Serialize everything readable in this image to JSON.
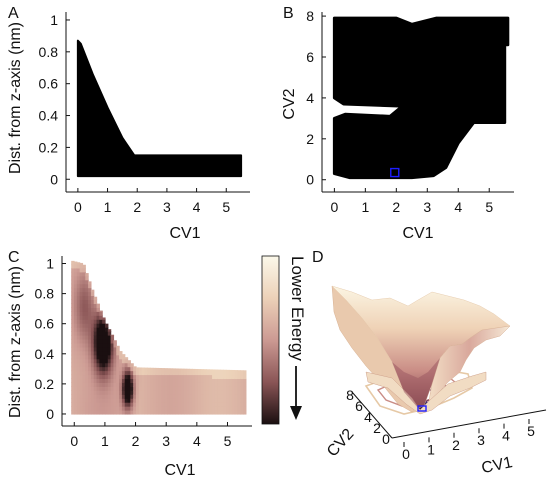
{
  "colors": {
    "scatter": "#000000",
    "marker": "#1d1dff",
    "energy_low": "#1a0f10",
    "energy_mid": "#b97a78",
    "energy_high": "#fbf8ea"
  },
  "chart_data": [
    {
      "panel": "A",
      "type": "scatter",
      "xlabel": "CV1",
      "ylabel": "Dist. from z-axis (nm)",
      "xlim": [
        -0.4,
        5.8
      ],
      "ylim": [
        -0.08,
        1.05
      ],
      "xticks": [
        "0",
        "1",
        "2",
        "3",
        "4",
        "5"
      ],
      "yticks": [
        "0",
        "0.2",
        "0.4",
        "0.6",
        "0.8",
        "1"
      ],
      "region": {
        "upper_envelope": [
          [
            0.0,
            0.87
          ],
          [
            0.1,
            0.85
          ],
          [
            0.5,
            0.66
          ],
          [
            1.0,
            0.45
          ],
          [
            1.5,
            0.26
          ],
          [
            1.9,
            0.15
          ],
          [
            5.5,
            0.15
          ]
        ],
        "lower_envelope": [
          [
            0.0,
            0.02
          ],
          [
            5.5,
            0.02
          ]
        ]
      }
    },
    {
      "panel": "B",
      "type": "scatter",
      "xlabel": "CV1",
      "ylabel": "CV2",
      "xlim": [
        -0.4,
        5.8
      ],
      "ylim": [
        -0.6,
        8.2
      ],
      "xticks": [
        "0",
        "1",
        "2",
        "3",
        "4",
        "5"
      ],
      "yticks": [
        "0",
        "2",
        "4",
        "6",
        "8"
      ],
      "region": {
        "outline": [
          [
            0.0,
            7.9
          ],
          [
            2.0,
            7.9
          ],
          [
            2.5,
            7.6
          ],
          [
            3.3,
            7.9
          ],
          [
            5.6,
            7.9
          ],
          [
            5.6,
            6.6
          ],
          [
            5.5,
            6.6
          ],
          [
            5.5,
            2.8
          ],
          [
            4.5,
            2.8
          ],
          [
            4.0,
            1.8
          ],
          [
            3.6,
            0.6
          ],
          [
            3.2,
            0.2
          ],
          [
            2.5,
            0.1
          ],
          [
            0.5,
            0.1
          ],
          [
            0.0,
            0.3
          ],
          [
            0.0,
            3.0
          ],
          [
            0.35,
            3.2
          ],
          [
            1.8,
            3.1
          ],
          [
            2.2,
            3.6
          ],
          [
            0.3,
            3.7
          ],
          [
            0.0,
            4.0
          ]
        ]
      },
      "marker": {
        "x": 1.95,
        "y": 0.35,
        "shape": "square"
      }
    },
    {
      "panel": "C",
      "type": "heatmap",
      "xlabel": "CV1",
      "ylabel": "Dist. from z-axis (nm)",
      "xlim": [
        -0.4,
        5.8
      ],
      "ylim": [
        -0.08,
        1.05
      ],
      "xticks": [
        "0",
        "1",
        "2",
        "3",
        "4",
        "5"
      ],
      "yticks": [
        "0",
        "0.2",
        "0.4",
        "0.6",
        "0.8",
        "1"
      ],
      "region": {
        "upper_envelope": [
          [
            -0.1,
            1.02
          ],
          [
            0.3,
            1.0
          ],
          [
            0.6,
            0.82
          ],
          [
            1.0,
            0.62
          ],
          [
            1.5,
            0.42
          ],
          [
            2.0,
            0.31
          ],
          [
            5.6,
            0.29
          ]
        ],
        "lower_envelope": [
          [
            -0.1,
            0.0
          ],
          [
            5.6,
            0.0
          ]
        ]
      },
      "minima": [
        {
          "x": 0.95,
          "y": 0.48,
          "sx": 0.32,
          "sy": 0.2,
          "depth": 0.95
        },
        {
          "x": 1.75,
          "y": 0.17,
          "sx": 0.18,
          "sy": 0.12,
          "depth": 0.9
        },
        {
          "x": 0.35,
          "y": 0.72,
          "sx": 0.35,
          "sy": 0.25,
          "depth": 0.35
        }
      ]
    },
    {
      "panel": "D",
      "type": "surface",
      "xlabel": "CV1",
      "ylabel": "CV2",
      "xticks": [
        "0",
        "1",
        "2",
        "3",
        "4",
        "5"
      ],
      "yticks": [
        "0",
        "2",
        "4",
        "6",
        "8"
      ],
      "ytick_labels_printed": [
        "8",
        "6",
        "4",
        "2",
        "0"
      ]
    }
  ],
  "colorbar": {
    "label": "Lower Energy",
    "direction": "down"
  },
  "panels": {
    "A": {
      "letter": "A"
    },
    "B": {
      "letter": "B"
    },
    "C": {
      "letter": "C"
    },
    "D": {
      "letter": "D"
    }
  }
}
